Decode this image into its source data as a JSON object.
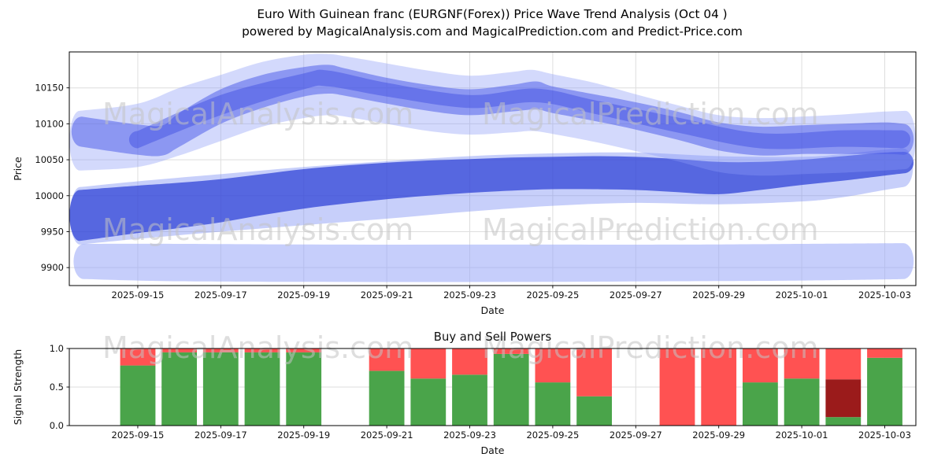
{
  "title": {
    "line1": "Euro With Guinean franc (EURGNF(Forex)) Price Wave Trend Analysis (Oct 04 )",
    "line2": "powered by MagicalAnalysis.com and MagicalPrediction.com and Predict-Price.com"
  },
  "watermark": {
    "texts": [
      "MagicalAnalysis.com",
      "MagicalPrediction.com"
    ],
    "color": "#c3c3c3"
  },
  "chart_data": [
    {
      "id": "price_wave",
      "type": "area",
      "title": "",
      "xlabel": "Date",
      "ylabel": "Price",
      "x_tick_labels": [
        "2025-09-15",
        "2025-09-17",
        "2025-09-19",
        "2025-09-21",
        "2025-09-23",
        "2025-09-25",
        "2025-09-27",
        "2025-09-29",
        "2025-10-01",
        "2025-10-03"
      ],
      "x_tick_days": [
        0,
        2,
        4,
        6,
        8,
        10,
        12,
        14,
        16,
        18
      ],
      "xlim_days": [
        -1.65,
        18.75
      ],
      "y_ticks": [
        9900,
        9950,
        10000,
        10050,
        10100,
        10150
      ],
      "y_tick_labels": [
        "9900",
        "9950",
        "10000",
        "10050",
        "10100",
        "10150"
      ],
      "ylim": [
        9875,
        10200
      ],
      "grid": true,
      "legend": null,
      "bands": [
        {
          "name": "low-range-band",
          "color": "#97a5f7",
          "opacity": 0.55,
          "points": [
            [
              -1.3,
              9884,
              9933
            ],
            [
              1,
              9881,
              9933
            ],
            [
              5,
              9880,
              9932
            ],
            [
              9,
              9880,
              9932
            ],
            [
              13,
              9881,
              9932
            ],
            [
              16,
              9882,
              9933
            ],
            [
              18.45,
              9884,
              9934
            ]
          ]
        },
        {
          "name": "mid-envelope-band",
          "color": "#7487f2",
          "opacity": 0.4,
          "points": [
            [
              -1.4,
              9932,
              10012
            ],
            [
              0,
              9940,
              10020
            ],
            [
              2,
              9950,
              10030
            ],
            [
              4,
              9959,
              10040
            ],
            [
              6,
              9968,
              10048
            ],
            [
              8,
              9978,
              10055
            ],
            [
              10,
              9986,
              10059
            ],
            [
              12,
              9990,
              10060
            ],
            [
              14,
              9988,
              10055
            ],
            [
              16,
              9992,
              10054
            ],
            [
              17,
              9998,
              10058
            ],
            [
              18,
              10008,
              10064
            ],
            [
              18.45,
              10012,
              10066
            ]
          ]
        },
        {
          "name": "main-trend-band",
          "color": "#2b3fd6",
          "opacity": 0.72,
          "points": [
            [
              -1.4,
              9937,
              10008
            ],
            [
              0,
              9948,
              10014
            ],
            [
              1,
              9955,
              10018
            ],
            [
              2,
              9963,
              10023
            ],
            [
              3,
              9973,
              10030
            ],
            [
              4,
              9982,
              10037
            ],
            [
              5,
              9989,
              10042
            ],
            [
              6,
              9995,
              10046
            ],
            [
              7,
              10000,
              10049
            ],
            [
              8,
              10004,
              10051
            ],
            [
              9,
              10007,
              10053
            ],
            [
              10,
              10009,
              10054
            ],
            [
              11,
              10009,
              10055
            ],
            [
              12,
              10008,
              10054
            ],
            [
              13,
              10005,
              10051
            ],
            [
              14,
              10002,
              10047
            ],
            [
              15,
              10008,
              10047
            ],
            [
              16,
              10015,
              10050
            ],
            [
              17,
              10021,
              10055
            ],
            [
              18,
              10028,
              10060
            ],
            [
              18.45,
              10031,
              10061
            ]
          ]
        },
        {
          "name": "upper-fan-band",
          "color": "#8c9bf7",
          "opacity": 0.38,
          "points": [
            [
              -1.4,
              10035,
              10118
            ],
            [
              0,
              10040,
              10128
            ],
            [
              1,
              10056,
              10150
            ],
            [
              2,
              10076,
              10168
            ],
            [
              3,
              10096,
              10186
            ],
            [
              4,
              10108,
              10196
            ],
            [
              4.6,
              10112,
              10197
            ],
            [
              5,
              10110,
              10194
            ],
            [
              6,
              10100,
              10184
            ],
            [
              7,
              10090,
              10174
            ],
            [
              8,
              10085,
              10167
            ],
            [
              9,
              10088,
              10172
            ],
            [
              9.5,
              10090,
              10175
            ],
            [
              10,
              10086,
              10169
            ],
            [
              11,
              10075,
              10157
            ],
            [
              12,
              10062,
              10141
            ],
            [
              13,
              10048,
              10126
            ],
            [
              14,
              10033,
              10112
            ],
            [
              15,
              10028,
              10108
            ],
            [
              16,
              10030,
              10110
            ],
            [
              17,
              10032,
              10113
            ],
            [
              18,
              10035,
              10117
            ],
            [
              18.5,
              10037,
              10118
            ]
          ]
        },
        {
          "name": "upper-wave-band",
          "color": "#4656e8",
          "opacity": 0.5,
          "points": [
            [
              -1.35,
              10068,
              10110
            ],
            [
              0,
              10057,
              10099
            ],
            [
              0.6,
              10056,
              10098
            ],
            [
              1,
              10068,
              10115
            ],
            [
              2,
              10100,
              10148
            ],
            [
              3,
              10122,
              10168
            ],
            [
              4,
              10138,
              10179
            ],
            [
              4.6,
              10142,
              10182
            ],
            [
              5,
              10139,
              10177
            ],
            [
              6,
              10128,
              10164
            ],
            [
              7,
              10118,
              10154
            ],
            [
              8,
              10112,
              10148
            ],
            [
              9,
              10117,
              10154
            ],
            [
              9.6,
              10120,
              10159
            ],
            [
              10,
              10115,
              10152
            ],
            [
              11,
              10104,
              10141
            ],
            [
              12,
              10092,
              10130
            ],
            [
              13,
              10078,
              10117
            ],
            [
              14,
              10063,
              10102
            ],
            [
              15,
              10056,
              10096
            ],
            [
              16,
              10058,
              10098
            ],
            [
              17,
              10058,
              10100
            ],
            [
              18,
              10058,
              10102
            ],
            [
              18.45,
              10057,
              10100
            ]
          ]
        },
        {
          "name": "upper-core-band",
          "color": "#3a4ae0",
          "opacity": 0.45,
          "points": [
            [
              0,
              10066,
              10090
            ],
            [
              2,
              10112,
              10140
            ],
            [
              4,
              10148,
              10170
            ],
            [
              4.6,
              10152,
              10174
            ],
            [
              6,
              10138,
              10157
            ],
            [
              8,
              10122,
              10140
            ],
            [
              9.6,
              10130,
              10149
            ],
            [
              11,
              10114,
              10133
            ],
            [
              13,
              10088,
              10109
            ],
            [
              15,
              10066,
              10087
            ],
            [
              17,
              10068,
              10091
            ],
            [
              18.4,
              10066,
              10091
            ]
          ]
        }
      ]
    },
    {
      "id": "buy_sell_power",
      "type": "bar",
      "title": "Buy and Sell Powers",
      "xlabel": "Date",
      "ylabel": "Signal Strength",
      "x_tick_labels": [
        "2025-09-15",
        "2025-09-17",
        "2025-09-19",
        "2025-09-21",
        "2025-09-23",
        "2025-09-25",
        "2025-09-27",
        "2025-09-29",
        "2025-10-01",
        "2025-10-03"
      ],
      "x_tick_days": [
        0,
        2,
        4,
        6,
        8,
        10,
        12,
        14,
        16,
        18
      ],
      "xlim_days": [
        -1.65,
        18.75
      ],
      "y_ticks": [
        0,
        0.5,
        1.0
      ],
      "y_tick_labels": [
        "0.0",
        "0.5",
        "1.0"
      ],
      "ylim": [
        0,
        1.0
      ],
      "grid": true,
      "bar_width_days": 0.85,
      "colors": {
        "green": "#4aa44a",
        "red": "#ff5252",
        "darkred": "#9b1b1b"
      },
      "bars": [
        {
          "date": "2025-09-15",
          "segments": [
            [
              "green",
              0.78
            ],
            [
              "red",
              0.22
            ]
          ]
        },
        {
          "date": "2025-09-16",
          "segments": [
            [
              "green",
              0.95
            ],
            [
              "red",
              0.05
            ]
          ]
        },
        {
          "date": "2025-09-17",
          "segments": [
            [
              "green",
              0.95
            ],
            [
              "red",
              0.05
            ]
          ]
        },
        {
          "date": "2025-09-18",
          "segments": [
            [
              "green",
              0.95
            ],
            [
              "red",
              0.05
            ]
          ]
        },
        {
          "date": "2025-09-19",
          "segments": [
            [
              "green",
              0.95
            ],
            [
              "red",
              0.05
            ]
          ]
        },
        {
          "date": "2025-09-21",
          "segments": [
            [
              "green",
              0.71
            ],
            [
              "red",
              0.29
            ]
          ]
        },
        {
          "date": "2025-09-22",
          "segments": [
            [
              "green",
              0.61
            ],
            [
              "red",
              0.39
            ]
          ]
        },
        {
          "date": "2025-09-23",
          "segments": [
            [
              "green",
              0.66
            ],
            [
              "red",
              0.34
            ]
          ]
        },
        {
          "date": "2025-09-24",
          "segments": [
            [
              "green",
              0.93
            ],
            [
              "red",
              0.07
            ]
          ]
        },
        {
          "date": "2025-09-25",
          "segments": [
            [
              "green",
              0.56
            ],
            [
              "red",
              0.44
            ]
          ]
        },
        {
          "date": "2025-09-26",
          "segments": [
            [
              "green",
              0.38
            ],
            [
              "red",
              0.62
            ]
          ]
        },
        {
          "date": "2025-09-28",
          "segments": [
            [
              "red",
              1.0
            ]
          ]
        },
        {
          "date": "2025-09-29",
          "segments": [
            [
              "red",
              1.0
            ]
          ]
        },
        {
          "date": "2025-09-30",
          "segments": [
            [
              "green",
              0.56
            ],
            [
              "red",
              0.44
            ]
          ]
        },
        {
          "date": "2025-10-01",
          "segments": [
            [
              "green",
              0.61
            ],
            [
              "red",
              0.39
            ]
          ]
        },
        {
          "date": "2025-10-02",
          "segments": [
            [
              "green",
              0.11
            ],
            [
              "darkred",
              0.49
            ],
            [
              "red",
              0.4
            ]
          ]
        },
        {
          "date": "2025-10-03",
          "segments": [
            [
              "green",
              0.88
            ],
            [
              "red",
              0.12
            ]
          ]
        }
      ]
    }
  ]
}
